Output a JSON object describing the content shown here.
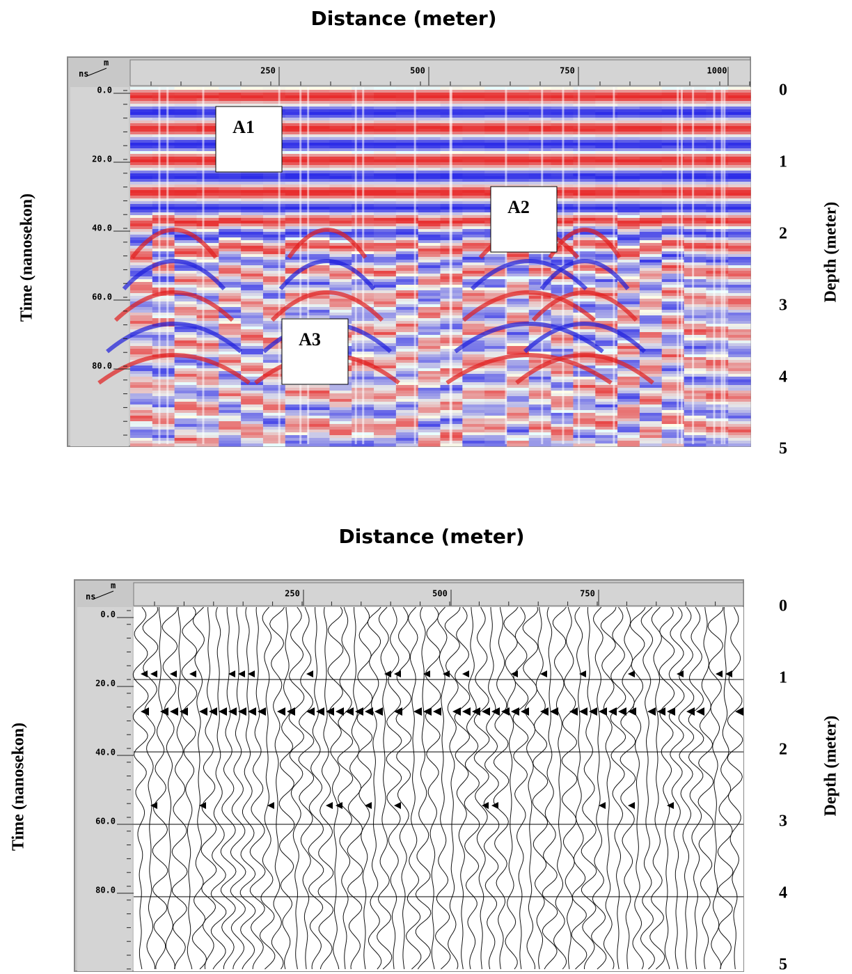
{
  "panels": [
    {
      "title": "Distance (meter)",
      "y_label": "Time (nanosekon)",
      "y2_label": "Depth (meter)",
      "corner": {
        "top": "m",
        "bottom": "ns"
      },
      "time_ticks": [
        "0.0",
        "20.0",
        "40.0",
        "60.0",
        "80.0"
      ],
      "distance_ticks": [
        "250",
        "500",
        "750",
        "1000"
      ],
      "depth_ticks": [
        "0",
        "1",
        "2",
        "3",
        "4",
        "5"
      ],
      "annotations": [
        "A1",
        "A2",
        "A3"
      ]
    },
    {
      "title": "Distance (meter)",
      "y_label": "Time (nanosekon)",
      "y2_label": "Depth (meter)",
      "corner": {
        "top": "m",
        "bottom": "ns"
      },
      "time_ticks": [
        "0.0",
        "20.0",
        "40.0",
        "60.0",
        "80.0"
      ],
      "distance_ticks": [
        "250",
        "500",
        "750"
      ],
      "depth_ticks": [
        "0",
        "1",
        "2",
        "3",
        "4",
        "5"
      ]
    }
  ]
}
